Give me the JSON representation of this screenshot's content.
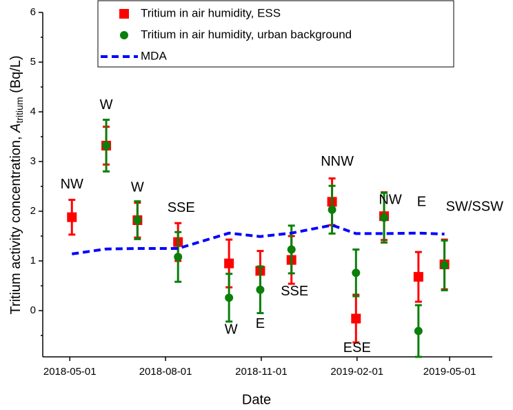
{
  "chart_data": {
    "type": "scatter",
    "x_label": "Date",
    "y_label": {
      "text": "Tritium activity concentration, ",
      "symbol": "A",
      "subscript": "tritium",
      "unit": " (Bq/L)"
    },
    "xlim": [
      "2018-04-05",
      "2019-06-11"
    ],
    "xticks": [
      "2018-05-01",
      "2018-08-01",
      "2018-11-01",
      "2019-02-01",
      "2019-05-01"
    ],
    "ylim": [
      -0.93,
      6
    ],
    "yticks": [
      0,
      1,
      2,
      3,
      4,
      5,
      6
    ],
    "yminor": [
      -0.5,
      0.5,
      1.5,
      2.5,
      3.5,
      4.5,
      5.5
    ],
    "series": [
      {
        "name": "Tritium in air humidity, ESS",
        "color": "#ff0000",
        "marker": "square",
        "x": [
          "2018-05-03",
          "2018-06-05",
          "2018-07-05",
          "2018-08-13",
          "2018-10-01",
          "2018-10-31",
          "2018-11-30",
          "2019-01-08",
          "2019-01-31",
          "2019-02-27",
          "2019-04-01",
          "2019-04-26"
        ],
        "values": [
          1.88,
          3.32,
          1.82,
          1.38,
          0.95,
          0.8,
          1.02,
          2.19,
          -0.16,
          1.9,
          0.68,
          0.93
        ],
        "errors": [
          0.35,
          0.38,
          0.35,
          0.38,
          0.48,
          0.4,
          0.48,
          0.47,
          0.48,
          0.48,
          0.5,
          0.5
        ]
      },
      {
        "name": "Tritium in air humidity, urban background",
        "color": "#0a7f0a",
        "marker": "circle",
        "x": [
          "2018-06-05",
          "2018-07-05",
          "2018-08-13",
          "2018-10-01",
          "2018-10-31",
          "2018-11-30",
          "2019-01-08",
          "2019-01-31",
          "2019-02-27",
          "2019-04-01",
          "2019-04-26"
        ],
        "values": [
          3.32,
          1.82,
          1.08,
          0.26,
          0.42,
          1.23,
          2.03,
          0.76,
          1.87,
          -0.41,
          0.91
        ],
        "errors": [
          0.52,
          0.38,
          0.5,
          0.48,
          0.47,
          0.48,
          0.48,
          0.47,
          0.5,
          0.52,
          0.5
        ]
      },
      {
        "name": "MDA",
        "color": "#0000ff",
        "marker": "line",
        "x": [
          "2018-05-03",
          "2018-06-05",
          "2018-07-05",
          "2018-08-13",
          "2018-10-01",
          "2018-10-31",
          "2018-11-30",
          "2019-01-08",
          "2019-01-31",
          "2019-02-27",
          "2019-04-01",
          "2019-04-26"
        ],
        "values": [
          1.14,
          1.24,
          1.25,
          1.25,
          1.56,
          1.49,
          1.56,
          1.72,
          1.55,
          1.55,
          1.56,
          1.54
        ]
      }
    ],
    "annotations": [
      {
        "text": "NW",
        "x": "2018-05-03",
        "y": 2.53
      },
      {
        "text": "W",
        "x": "2018-06-05",
        "y": 4.13
      },
      {
        "text": "W",
        "x": "2018-07-05",
        "y": 2.47
      },
      {
        "text": "SSE",
        "x": "2018-08-16",
        "y": 2.06
      },
      {
        "text": "W",
        "x": "2018-10-03",
        "y": -0.39
      },
      {
        "text": "E",
        "x": "2018-10-31",
        "y": -0.27
      },
      {
        "text": "SSE",
        "x": "2018-12-03",
        "y": 0.38
      },
      {
        "text": "NNW",
        "x": "2019-01-13",
        "y": 2.99
      },
      {
        "text": "ESE",
        "x": "2019-02-01",
        "y": -0.76
      },
      {
        "text": "NW",
        "x": "2019-03-05",
        "y": 2.22
      },
      {
        "text": "E",
        "x": "2019-04-04",
        "y": 2.18
      },
      {
        "text": "SW/SSW",
        "x": "2019-05-25",
        "y": 2.08
      }
    ]
  }
}
